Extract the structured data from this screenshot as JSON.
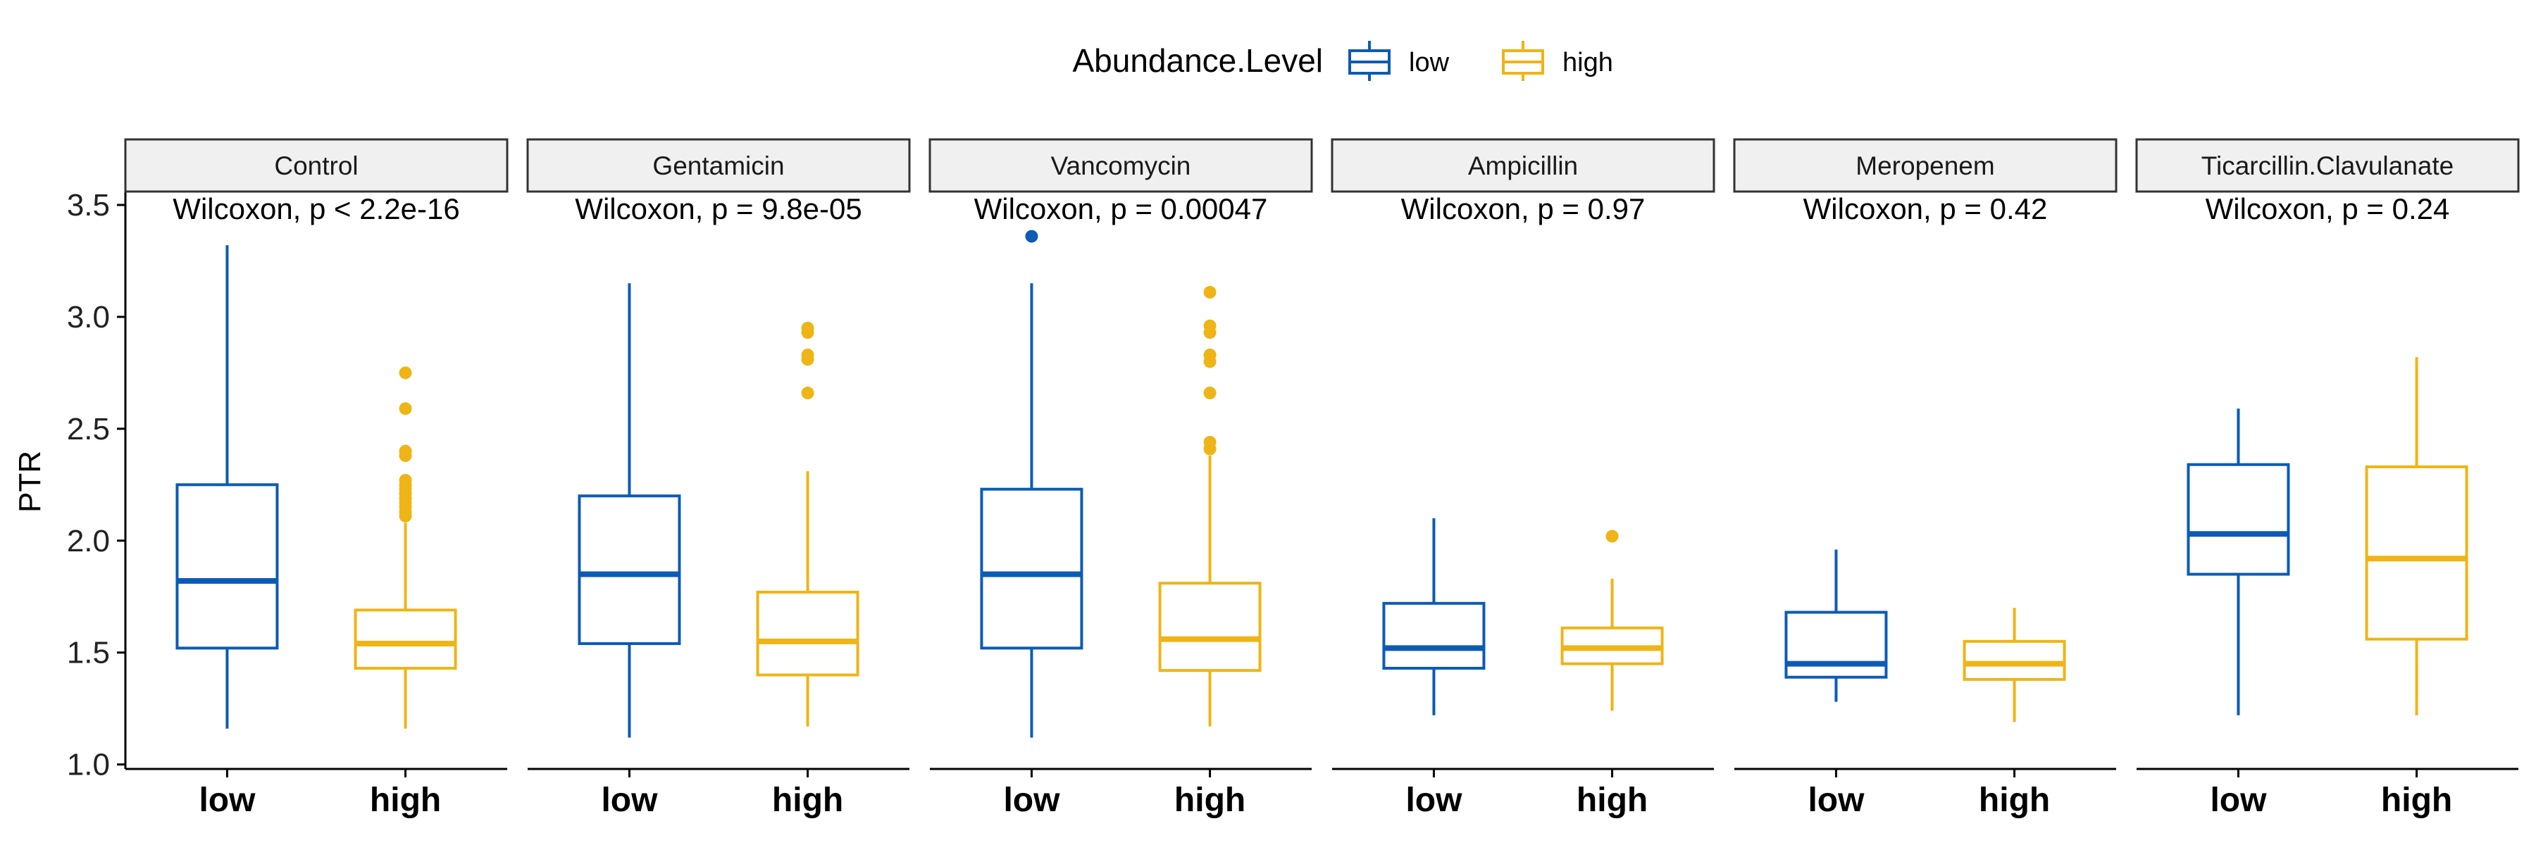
{
  "chart_data": {
    "type": "boxplot",
    "ylabel": "PTR",
    "ylim": [
      0.98,
      3.56
    ],
    "yticks": [
      1.0,
      1.5,
      2.0,
      2.5,
      3.0,
      3.5
    ],
    "ytick_labels": [
      "1.0",
      "1.5",
      "2.0",
      "2.5",
      "3.0",
      "3.5"
    ],
    "grid": false,
    "legend": {
      "title": "Abundance.Level",
      "placement": "top",
      "items": [
        {
          "label": "low",
          "color": "#0c5bb5"
        },
        {
          "label": "high",
          "color": "#efb415"
        }
      ]
    },
    "categories": [
      "low",
      "high"
    ],
    "panels": [
      {
        "name": "Control",
        "stat": "Wilcoxon, p < 2.2e-16",
        "groups": [
          {
            "name": "low",
            "min": 1.16,
            "q1": 1.52,
            "median": 1.82,
            "q3": 2.25,
            "max": 3.32,
            "outliers": []
          },
          {
            "name": "high",
            "min": 1.16,
            "q1": 1.43,
            "median": 1.54,
            "q3": 1.69,
            "max": 2.08,
            "outliers": [
              2.11,
              2.13,
              2.15,
              2.17,
              2.19,
              2.21,
              2.23,
              2.25,
              2.27,
              2.38,
              2.4,
              2.59,
              2.75
            ]
          }
        ]
      },
      {
        "name": "Gentamicin",
        "stat": "Wilcoxon, p = 9.8e-05",
        "groups": [
          {
            "name": "low",
            "min": 1.12,
            "q1": 1.54,
            "median": 1.85,
            "q3": 2.2,
            "max": 3.15,
            "outliers": []
          },
          {
            "name": "high",
            "min": 1.17,
            "q1": 1.4,
            "median": 1.55,
            "q3": 1.77,
            "max": 2.31,
            "outliers": [
              2.66,
              2.81,
              2.83,
              2.93,
              2.95
            ]
          }
        ]
      },
      {
        "name": "Vancomycin",
        "stat": "Wilcoxon, p = 0.00047",
        "groups": [
          {
            "name": "low",
            "min": 1.12,
            "q1": 1.52,
            "median": 1.85,
            "q3": 2.23,
            "max": 3.15,
            "outliers": [
              3.36
            ]
          },
          {
            "name": "high",
            "min": 1.17,
            "q1": 1.42,
            "median": 1.56,
            "q3": 1.81,
            "max": 2.38,
            "outliers": [
              2.41,
              2.44,
              2.66,
              2.8,
              2.83,
              2.93,
              2.96,
              3.11
            ]
          }
        ]
      },
      {
        "name": "Ampicillin",
        "stat": "Wilcoxon, p = 0.97",
        "groups": [
          {
            "name": "low",
            "min": 1.22,
            "q1": 1.43,
            "median": 1.52,
            "q3": 1.72,
            "max": 2.1,
            "outliers": []
          },
          {
            "name": "high",
            "min": 1.24,
            "q1": 1.45,
            "median": 1.52,
            "q3": 1.61,
            "max": 1.83,
            "outliers": [
              2.02
            ]
          }
        ]
      },
      {
        "name": "Meropenem",
        "stat": "Wilcoxon, p = 0.42",
        "groups": [
          {
            "name": "low",
            "min": 1.28,
            "q1": 1.39,
            "median": 1.45,
            "q3": 1.68,
            "max": 1.96,
            "outliers": []
          },
          {
            "name": "high",
            "min": 1.19,
            "q1": 1.38,
            "median": 1.45,
            "q3": 1.55,
            "max": 1.7,
            "outliers": []
          }
        ]
      },
      {
        "name": "Ticarcillin.Clavulanate",
        "stat": "Wilcoxon, p = 0.24",
        "groups": [
          {
            "name": "low",
            "min": 1.22,
            "q1": 1.85,
            "median": 2.03,
            "q3": 2.34,
            "max": 2.59,
            "outliers": []
          },
          {
            "name": "high",
            "min": 1.22,
            "q1": 1.56,
            "median": 1.92,
            "q3": 2.33,
            "max": 2.82,
            "outliers": []
          }
        ]
      }
    ]
  }
}
